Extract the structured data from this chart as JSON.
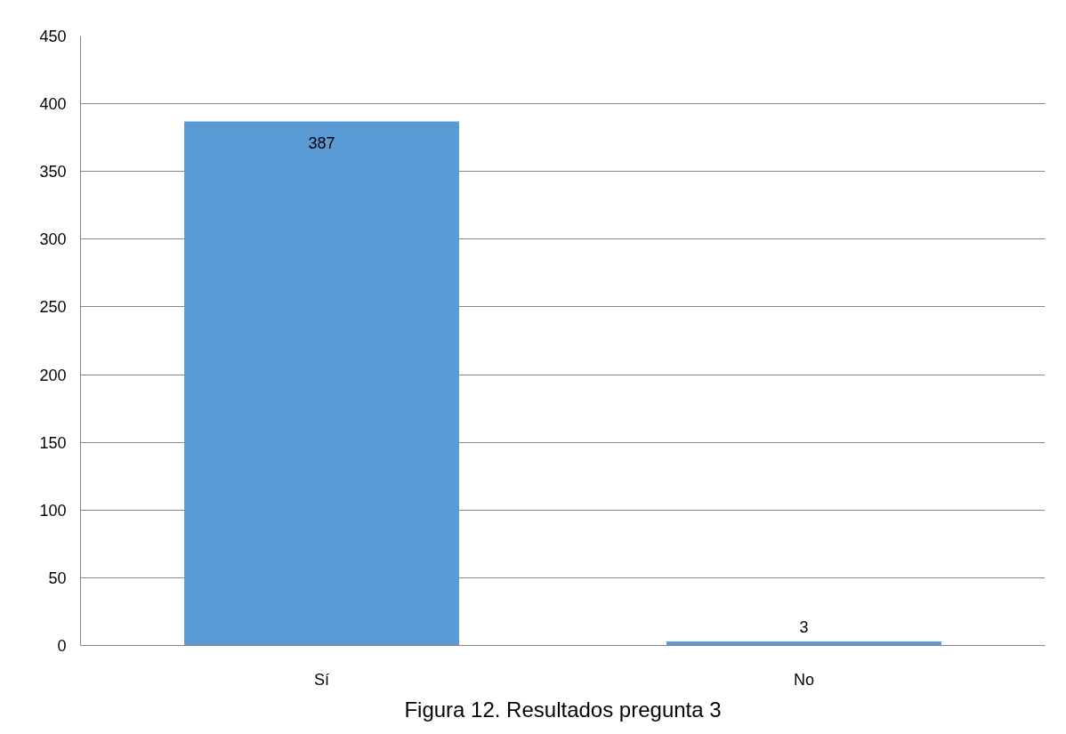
{
  "chart_data": {
    "type": "bar",
    "categories": [
      "Sí",
      "No"
    ],
    "values": [
      387,
      3
    ],
    "color": "#5b9bd5",
    "ylim": [
      0,
      450
    ],
    "yticks": [
      0,
      50,
      100,
      150,
      200,
      250,
      300,
      350,
      400,
      450
    ],
    "grid": "y",
    "data_labels": true,
    "annotations": [
      "Figura 12. Resultados pregunta 3"
    ]
  }
}
